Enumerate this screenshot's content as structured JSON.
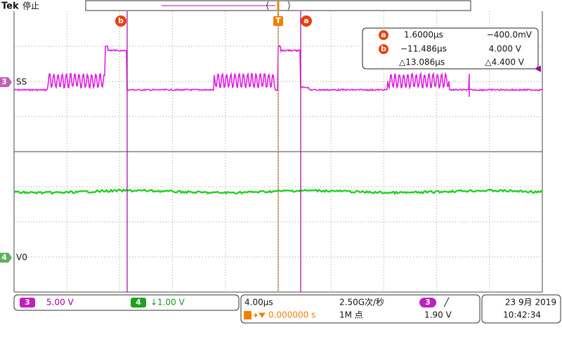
{
  "header": {
    "brand": "Tek",
    "status": "停止"
  },
  "markers": {
    "cursor_b": "b",
    "trigger": "T",
    "cursor_a": "a"
  },
  "readout": {
    "rows": [
      {
        "marker": "a",
        "time": "1.6000µs",
        "volt": "−400.0mV"
      },
      {
        "marker": "b",
        "time": "−11.486µs",
        "volt": "4.000 V"
      },
      {
        "time": "△13.086µs",
        "volt": "△4.400 V"
      }
    ]
  },
  "channels": [
    {
      "number": "3",
      "label": "SS"
    },
    {
      "number": "4",
      "label": "V0"
    }
  ],
  "footer": {
    "ch3_scale": {
      "number": "3",
      "value": "5.00 V"
    },
    "ch4_scale": {
      "number": "4",
      "value": "↓1.00 V"
    },
    "timebase": "4.00µs",
    "sample_rate": "2.50G次/秒",
    "trigger_source": "3",
    "trigger_slope": "╱",
    "trigger_position": "0.000000 s",
    "record_length": "1M 点",
    "trigger_level": "1.90 V",
    "date": "23 9月 2019",
    "time": "10:42:34"
  }
}
